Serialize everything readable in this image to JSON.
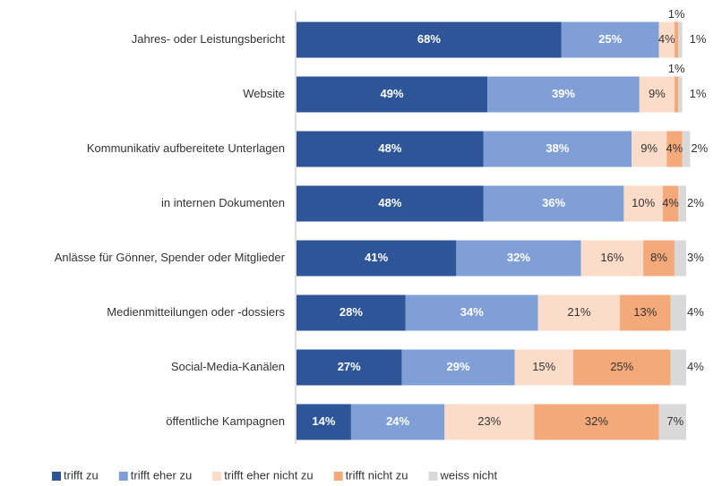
{
  "chart_data": {
    "type": "stacked-bar-horizontal",
    "categories": [
      "Jahres- oder Leistungsbericht",
      "Website",
      "Kommunikativ aufbereitete Unterlagen",
      "in internen Dokumenten",
      "Anlässe für Gönner, Spender oder Mitglieder",
      "Medienmitteilungen oder -dossiers",
      "Social-Media-Kanälen",
      "öffentliche Kampagnen"
    ],
    "xlim": [
      0,
      100
    ],
    "legend": "bottom",
    "series": [
      {
        "name": "trifft zu",
        "color": "#2e5597",
        "values": [
          68,
          49,
          48,
          48,
          41,
          28,
          27,
          14
        ],
        "value_labels": [
          "68%",
          "49%",
          "48%",
          "48%",
          "41%",
          "28%",
          "27%",
          "14%"
        ]
      },
      {
        "name": "trifft eher zu",
        "color": "#809fd6",
        "values": [
          25,
          39,
          38,
          36,
          32,
          34,
          29,
          24
        ],
        "value_labels": [
          "25%",
          "39%",
          "38%",
          "36%",
          "32%",
          "34%",
          "29%",
          "24%"
        ]
      },
      {
        "name": "trifft eher nicht zu",
        "color": "#fbdcc9",
        "values": [
          4,
          9,
          9,
          10,
          16,
          21,
          15,
          23
        ],
        "value_labels": [
          "4%",
          "9%",
          "9%",
          "10%",
          "16%",
          "21%",
          "15%",
          "23%"
        ]
      },
      {
        "name": "trifft nicht zu",
        "color": "#f4a97b",
        "values": [
          1,
          1,
          4,
          4,
          8,
          13,
          25,
          32
        ],
        "value_labels": [
          "1%",
          "1%",
          "4%",
          "4%",
          "8%",
          "13%",
          "25%",
          "32%"
        ]
      },
      {
        "name": "weiss nicht",
        "color": "#d9d9d9",
        "values": [
          1,
          1,
          2,
          2,
          3,
          4,
          4,
          7
        ],
        "value_labels": [
          "1%",
          "1%",
          "2%",
          "2%",
          "3%",
          "4%",
          "4%",
          "7%"
        ]
      }
    ]
  }
}
